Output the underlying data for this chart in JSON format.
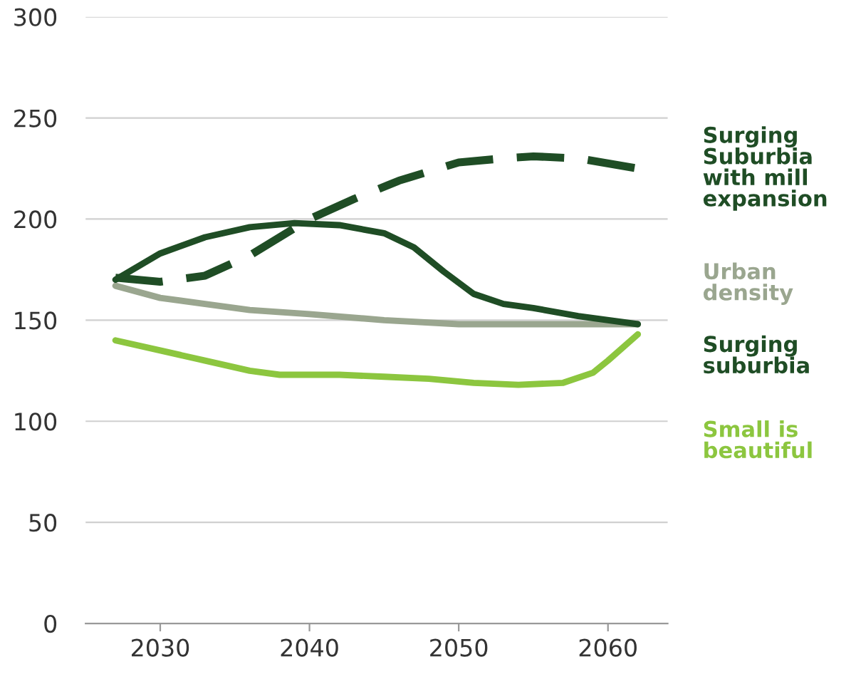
{
  "chart_data": {
    "type": "line",
    "xlim": [
      2025,
      2064
    ],
    "xticks": [
      2030,
      2040,
      2050,
      2060
    ],
    "ylim": [
      0,
      300
    ],
    "yticks": [
      0,
      50,
      100,
      150,
      200,
      250,
      300
    ],
    "grid": "y",
    "legend": "right",
    "tick_labels": "xy",
    "series": [
      {
        "name": "Surging Suburbia with mill expansion",
        "color": "#1f4d25",
        "line_style": "dashed",
        "x": [
          2027,
          2030,
          2033,
          2036,
          2040,
          2043,
          2046,
          2050,
          2053,
          2055,
          2058,
          2062
        ],
        "values": [
          171,
          169,
          172,
          182,
          200,
          210,
          219,
          228,
          230,
          231,
          230,
          225
        ]
      },
      {
        "name": "Urban density",
        "color": "#9aa68f",
        "line_style": "solid",
        "x": [
          2027,
          2030,
          2033,
          2036,
          2040,
          2045,
          2050,
          2055,
          2062
        ],
        "values": [
          167,
          161,
          158,
          155,
          153,
          150,
          148,
          148,
          148
        ]
      },
      {
        "name": "Surging suburbia",
        "color": "#1f4d25",
        "line_style": "solid",
        "x": [
          2027,
          2030,
          2033,
          2036,
          2039,
          2042,
          2045,
          2047,
          2049,
          2051,
          2053,
          2055,
          2058,
          2062
        ],
        "values": [
          170,
          183,
          191,
          196,
          198,
          197,
          193,
          186,
          174,
          163,
          158,
          156,
          152,
          148
        ]
      },
      {
        "name": "Small is beautiful",
        "color": "#8cc63f",
        "line_style": "solid",
        "x": [
          2027,
          2030,
          2033,
          2036,
          2038,
          2042,
          2045,
          2048,
          2051,
          2054,
          2057,
          2059,
          2060,
          2062
        ],
        "values": [
          140,
          135,
          130,
          125,
          123,
          123,
          122,
          121,
          119,
          118,
          119,
          124,
          130,
          143
        ]
      }
    ]
  }
}
